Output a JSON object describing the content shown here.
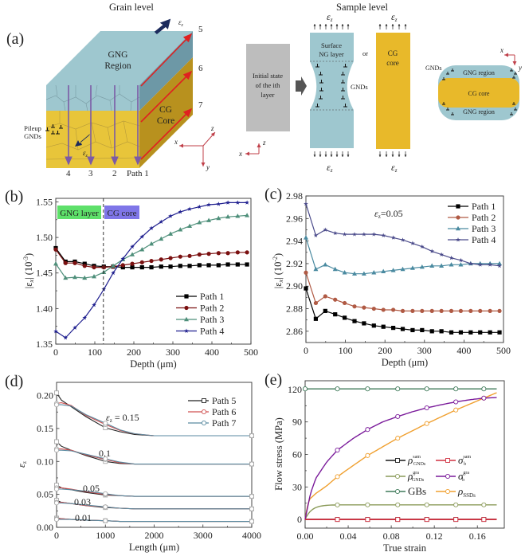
{
  "figure": {
    "panel_a": {
      "label": "(a)",
      "grain_level_title": "Grain level",
      "sample_level_title": "Sample level",
      "cube": {
        "top_label_line1": "GNG",
        "top_label_line2": "Region",
        "side_label_line1": "CG",
        "side_label_line2": "Core",
        "pileup_line1": "Pileup",
        "pileup_line2": "GNDs",
        "strain_top": "ε",
        "strain_top_sub": "z",
        "strain_front": "ε",
        "strain_front_sub": "z",
        "path_labels": [
          "4",
          "3",
          "2",
          "Path 1"
        ],
        "side_path_labels": [
          "5",
          "6",
          "7"
        ],
        "axes": {
          "x": "x",
          "y": "y",
          "z": "z"
        }
      },
      "initial_state": {
        "line1": "Initial state",
        "line2": "of the ith",
        "line3": "layer",
        "axes": {
          "x": "x",
          "z": "z"
        }
      },
      "ng_sample": {
        "line1": "Surface",
        "line2": "NG layer",
        "gnds_label": "GNDs",
        "or_label": "or",
        "strain_top": "ε",
        "strain_sub": "z",
        "strain_bottom": "ε"
      },
      "cg_sample": {
        "line1": "CG",
        "line2": "core",
        "strain_top": "ε",
        "strain_sub": "z",
        "strain_bottom": "ε"
      },
      "cross_section": {
        "gnds_label": "GNDs",
        "top_region": "GNG region",
        "core": "CG core",
        "bottom_region": "GNG region",
        "axes": {
          "x": "x",
          "y": "y"
        }
      },
      "colors": {
        "gng_blue": "#9ec7cf",
        "cg_yellow": "#e8b92a",
        "cg_dark": "#b8911e",
        "gray": "#bdbdbd",
        "path_arrow_purple": "#7b5aa6",
        "path_arrow_red": "#e02020",
        "axis_red": "#c0404a",
        "dark_arrow": "#1b2a5c"
      }
    }
  },
  "chart_data": [
    {
      "panel": "(b)",
      "type": "line",
      "title": "",
      "xlabel": "Depth (μm)",
      "ylabel": "|ε_x| (10^-3)",
      "ylabel_main": "|ε",
      "ylabel_sub": "x",
      "ylabel_tail": "| (10",
      "ylabel_sup": "-3",
      "ylabel_close": ")",
      "xlim": [
        0,
        500
      ],
      "ylim": [
        1.35,
        1.555
      ],
      "xticks": [
        0,
        100,
        200,
        300,
        400,
        500
      ],
      "yticks": [
        1.35,
        1.4,
        1.45,
        1.5,
        1.55
      ],
      "ytick_labels": [
        "1.35",
        "1.40",
        "1.45",
        "1.50",
        "1.55"
      ],
      "grid": false,
      "legend": "bottom-right",
      "annotations": [
        {
          "text": "GNG layer",
          "color": "#5ee06a"
        },
        {
          "text": "CG core",
          "color": "#7f76e8"
        }
      ],
      "boundary_depth": 122,
      "x": [
        0,
        25,
        49,
        74,
        98,
        123,
        147,
        172,
        196,
        221,
        245,
        270,
        294,
        319,
        343,
        368,
        392,
        417,
        441,
        466,
        490
      ],
      "series": [
        {
          "name": "Path 1",
          "color": "#000000",
          "marker": "square",
          "values": [
            1.485,
            1.466,
            1.466,
            1.463,
            1.46,
            1.459,
            1.459,
            1.458,
            1.458,
            1.458,
            1.458,
            1.459,
            1.459,
            1.46,
            1.46,
            1.461,
            1.461,
            1.461,
            1.462,
            1.462,
            1.462
          ]
        },
        {
          "name": "Path 2",
          "color": "#7a1010",
          "marker": "circle",
          "values": [
            1.483,
            1.464,
            1.464,
            1.46,
            1.458,
            1.458,
            1.459,
            1.461,
            1.463,
            1.465,
            1.467,
            1.469,
            1.471,
            1.473,
            1.474,
            1.476,
            1.477,
            1.478,
            1.478,
            1.479,
            1.479
          ]
        },
        {
          "name": "Path 3",
          "color": "#4e8f7a",
          "marker": "triangle",
          "values": [
            1.463,
            1.443,
            1.444,
            1.443,
            1.445,
            1.451,
            1.46,
            1.469,
            1.476,
            1.483,
            1.491,
            1.498,
            1.505,
            1.511,
            1.516,
            1.521,
            1.524,
            1.527,
            1.529,
            1.53,
            1.531
          ]
        },
        {
          "name": "Path 4",
          "color": "#1f1f8f",
          "marker": "star",
          "values": [
            1.368,
            1.359,
            1.373,
            1.387,
            1.405,
            1.427,
            1.45,
            1.47,
            1.487,
            1.501,
            1.513,
            1.522,
            1.53,
            1.536,
            1.54,
            1.543,
            1.546,
            1.547,
            1.549,
            1.549,
            1.549
          ]
        }
      ]
    },
    {
      "panel": "(c)",
      "type": "line",
      "title": "",
      "xlabel": "Depth (μm)",
      "ylabel": "|ε_x| (10^-2)",
      "ylabel_main": "|ε",
      "ylabel_sub": "x",
      "ylabel_tail": "| (10",
      "ylabel_sup": "-2",
      "ylabel_close": ")",
      "xlim": [
        0,
        500
      ],
      "ylim": [
        2.85,
        2.98
      ],
      "xticks": [
        0,
        100,
        200,
        300,
        400,
        500
      ],
      "yticks": [
        2.86,
        2.88,
        2.9,
        2.92,
        2.94,
        2.96,
        2.98
      ],
      "ytick_labels": [
        "2.86",
        "2.88",
        "2.90",
        "2.92",
        "2.94",
        "2.96",
        "2.98"
      ],
      "grid": false,
      "legend": "top-right",
      "annotations": [
        {
          "text": "εz=0.05",
          "main": "ε",
          "sub": "z",
          "tail": "=0.05"
        }
      ],
      "x": [
        0,
        25,
        49,
        74,
        98,
        123,
        147,
        172,
        196,
        221,
        245,
        270,
        294,
        319,
        343,
        368,
        392,
        417,
        441,
        466,
        490
      ],
      "series": [
        {
          "name": "Path 1",
          "color": "#000000",
          "marker": "square",
          "values": [
            2.898,
            2.871,
            2.878,
            2.875,
            2.872,
            2.869,
            2.867,
            2.865,
            2.864,
            2.863,
            2.862,
            2.861,
            2.861,
            2.86,
            2.86,
            2.859,
            2.859,
            2.859,
            2.859,
            2.859,
            2.859
          ]
        },
        {
          "name": "Path 2",
          "color": "#b05a44",
          "marker": "circle",
          "values": [
            2.912,
            2.885,
            2.891,
            2.888,
            2.885,
            2.882,
            2.881,
            2.88,
            2.879,
            2.879,
            2.878,
            2.878,
            2.878,
            2.878,
            2.878,
            2.878,
            2.878,
            2.878,
            2.878,
            2.878,
            2.878
          ]
        },
        {
          "name": "Path 3",
          "color": "#4a8aa0",
          "marker": "triangle",
          "values": [
            2.943,
            2.915,
            2.919,
            2.915,
            2.912,
            2.911,
            2.911,
            2.912,
            2.913,
            2.914,
            2.915,
            2.916,
            2.917,
            2.918,
            2.918,
            2.919,
            2.919,
            2.92,
            2.92,
            2.92,
            2.92
          ]
        },
        {
          "name": "Path 4",
          "color": "#4a4a8a",
          "marker": "star",
          "values": [
            2.973,
            2.945,
            2.95,
            2.947,
            2.946,
            2.946,
            2.946,
            2.946,
            2.945,
            2.943,
            2.941,
            2.938,
            2.935,
            2.931,
            2.928,
            2.925,
            2.923,
            2.92,
            2.919,
            2.919,
            2.918
          ]
        }
      ]
    },
    {
      "panel": "(d)",
      "type": "line",
      "title": "",
      "xlabel": "Length (μm)",
      "ylabel": "ε_z",
      "ylabel_main": "ε",
      "ylabel_sub": "z",
      "xlim": [
        0,
        4000
      ],
      "ylim": [
        0,
        0.22
      ],
      "xticks": [
        0,
        1000,
        2000,
        3000,
        4000
      ],
      "yticks": [
        0.0,
        0.05,
        0.1,
        0.15,
        0.2
      ],
      "ytick_labels": [
        "0.00",
        "0.05",
        "0.10",
        "0.15",
        "0.20"
      ],
      "grid": false,
      "legend": "top-right",
      "curve_labels": [
        {
          "text": "= 0.15",
          "prefix_main": "ε",
          "prefix_sub": "z",
          "level": 0.15
        },
        {
          "text": "0.1",
          "level": 0.1
        },
        {
          "text": "0.05",
          "level": 0.05
        },
        {
          "text": "0.03",
          "level": 0.03
        },
        {
          "text": "0.01",
          "level": 0.01
        }
      ],
      "x": [
        0,
        100,
        300,
        600,
        1000,
        1300,
        1600,
        2000,
        2500,
        3000,
        3500,
        4000
      ],
      "series": [
        {
          "name": "Path 5",
          "color": "#222222",
          "marker": "open-square",
          "groups": [
            [
              0.204,
              0.193,
              0.183,
              0.168,
              0.151,
              0.145,
              0.141,
              0.139,
              0.139,
              0.139,
              0.139,
              0.139
            ],
            [
              0.13,
              0.123,
              0.117,
              0.109,
              0.1,
              0.097,
              0.096,
              0.096,
              0.096,
              0.096,
              0.096,
              0.096
            ],
            [
              0.064,
              0.06,
              0.057,
              0.053,
              0.049,
              0.048,
              0.047,
              0.047,
              0.047,
              0.047,
              0.047,
              0.047
            ],
            [
              0.041,
              0.038,
              0.036,
              0.033,
              0.03,
              0.029,
              0.028,
              0.028,
              0.028,
              0.028,
              0.028,
              0.028
            ],
            [
              0.014,
              0.013,
              0.012,
              0.011,
              0.01,
              0.009,
              0.009,
              0.009,
              0.009,
              0.009,
              0.009,
              0.009
            ]
          ]
        },
        {
          "name": "Path 6",
          "color": "#d05050",
          "marker": "open-circle",
          "groups": [
            [
              0.188,
              0.189,
              0.185,
              0.17,
              0.156,
              0.147,
              0.142,
              0.139,
              0.139,
              0.139,
              0.139,
              0.139
            ],
            [
              0.119,
              0.119,
              0.117,
              0.11,
              0.103,
              0.098,
              0.096,
              0.096,
              0.096,
              0.096,
              0.096,
              0.096
            ],
            [
              0.06,
              0.06,
              0.058,
              0.054,
              0.05,
              0.048,
              0.047,
              0.047,
              0.047,
              0.047,
              0.047,
              0.047
            ],
            [
              0.038,
              0.038,
              0.036,
              0.033,
              0.031,
              0.029,
              0.028,
              0.028,
              0.028,
              0.028,
              0.028,
              0.028
            ],
            [
              0.013,
              0.013,
              0.012,
              0.011,
              0.01,
              0.009,
              0.009,
              0.009,
              0.009,
              0.009,
              0.009,
              0.009
            ]
          ]
        },
        {
          "name": "Path 7",
          "color": "#5a8aa0",
          "marker": "open-hexagon",
          "groups": [
            [
              0.186,
              0.186,
              0.184,
              0.171,
              0.158,
              0.148,
              0.142,
              0.139,
              0.139,
              0.139,
              0.139,
              0.139
            ],
            [
              0.117,
              0.117,
              0.116,
              0.111,
              0.104,
              0.099,
              0.096,
              0.096,
              0.096,
              0.096,
              0.096,
              0.096
            ],
            [
              0.058,
              0.058,
              0.057,
              0.055,
              0.051,
              0.048,
              0.047,
              0.047,
              0.047,
              0.047,
              0.047,
              0.047
            ],
            [
              0.037,
              0.037,
              0.036,
              0.034,
              0.031,
              0.029,
              0.028,
              0.028,
              0.028,
              0.028,
              0.028,
              0.028
            ],
            [
              0.012,
              0.012,
              0.012,
              0.011,
              0.01,
              0.009,
              0.009,
              0.009,
              0.009,
              0.009,
              0.009,
              0.009
            ]
          ]
        }
      ]
    },
    {
      "panel": "(e)",
      "type": "line",
      "title": "",
      "xlabel": "True strain",
      "ylabel": "Flow stress (MPa)",
      "xlim": [
        0,
        0.185
      ],
      "ylim": [
        -8,
        128
      ],
      "xticks": [
        0.0,
        0.04,
        0.08,
        0.12,
        0.16
      ],
      "xtick_labels": [
        "0.00",
        "0.04",
        "0.08",
        "0.12",
        "0.16"
      ],
      "yticks": [
        0,
        30,
        60,
        90,
        120
      ],
      "grid": false,
      "legend": "center-right",
      "marker_x": [
        0.03,
        0.058,
        0.086,
        0.113,
        0.14,
        0.166
      ],
      "series": [
        {
          "name": "ρ_GNDs^sam",
          "main": "ρ",
          "sup": "sam",
          "sub": "GNDs",
          "color": "#1a1a1a",
          "marker": "open-square",
          "kind": "flat",
          "value": 0
        },
        {
          "name": "σ_b^sam",
          "main": "σ",
          "sup": "sam",
          "sub": "b",
          "color": "#d03040",
          "marker": "open-square",
          "kind": "flat",
          "value": 0
        },
        {
          "name": "ρ_GNDs^gra",
          "main": "ρ",
          "sup": "gra",
          "sub": "GNDs",
          "color": "#8a9a58",
          "marker": "open-circle",
          "kind": "saturating",
          "value": 13.5,
          "rate": 0.006
        },
        {
          "name": "σ_b^gra",
          "main": "σ",
          "sup": "gra",
          "sub": "b",
          "color": "#7a1a9a",
          "marker": "open-circle",
          "kind": "power",
          "points": [
            [
              0,
              0
            ],
            [
              0.005,
              24
            ],
            [
              0.01,
              38
            ],
            [
              0.02,
              53
            ],
            [
              0.03,
              64
            ],
            [
              0.045,
              75
            ],
            [
              0.058,
              83
            ],
            [
              0.072,
              90
            ],
            [
              0.086,
              95
            ],
            [
              0.1,
              99.5
            ],
            [
              0.113,
              103
            ],
            [
              0.127,
              106
            ],
            [
              0.14,
              108.5
            ],
            [
              0.153,
              110.5
            ],
            [
              0.166,
              112
            ],
            [
              0.178,
              112.5
            ]
          ]
        },
        {
          "name": "GBs",
          "main": "GBs",
          "color": "#3f7a5a",
          "marker": "open-circle",
          "kind": "flat",
          "value": 120.5
        },
        {
          "name": "ρ_SSDs",
          "main": "ρ",
          "sub": "SSDs",
          "color": "#f0a030",
          "marker": "open-circle",
          "kind": "power",
          "points": [
            [
              0,
              0
            ],
            [
              0.002,
              12
            ],
            [
              0.004,
              18.5
            ],
            [
              0.01,
              24
            ],
            [
              0.02,
              31
            ],
            [
              0.03,
              39.5
            ],
            [
              0.045,
              50
            ],
            [
              0.058,
              59
            ],
            [
              0.072,
              67
            ],
            [
              0.086,
              75
            ],
            [
              0.1,
              82
            ],
            [
              0.113,
              88.5
            ],
            [
              0.127,
              95
            ],
            [
              0.14,
              101
            ],
            [
              0.153,
              106.5
            ],
            [
              0.166,
              112
            ],
            [
              0.178,
              117
            ]
          ]
        }
      ]
    }
  ],
  "panel_labels": [
    "(b)",
    "(c)",
    "(d)",
    "(e)"
  ]
}
